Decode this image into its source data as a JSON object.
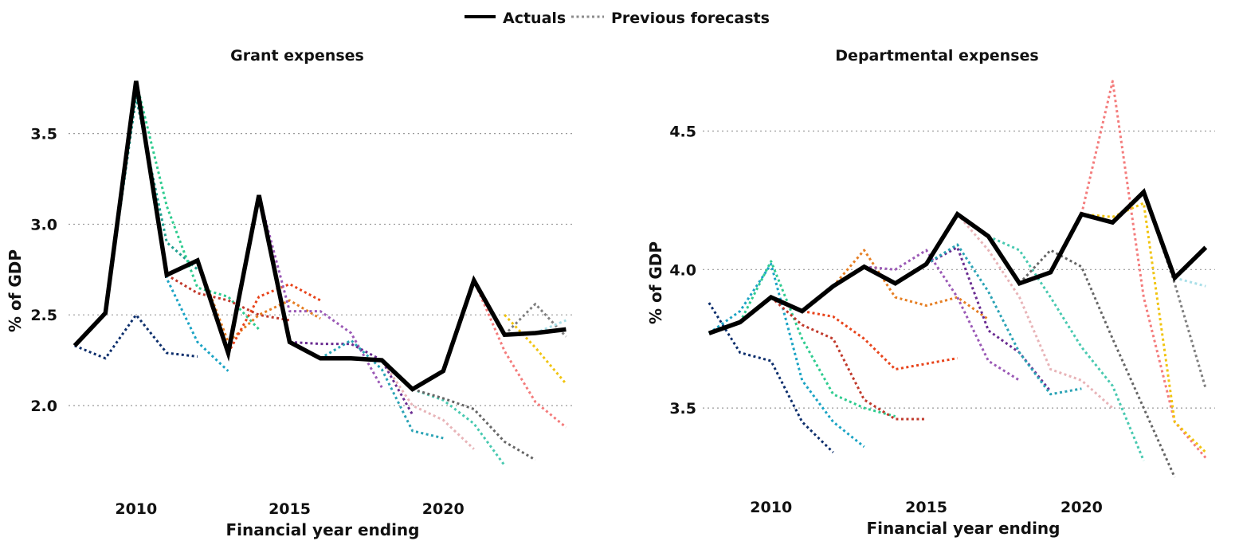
{
  "legend": {
    "actuals_label": "Actuals",
    "forecasts_label": "Previous forecasts",
    "actuals_color": "#000000",
    "forecasts_color": "#8c8c8c"
  },
  "chart_data": [
    {
      "type": "line",
      "title": "Grant expenses",
      "xlabel": "Financial year ending",
      "ylabel": "% of GDP",
      "xlim": [
        2007.8,
        2024.3
      ],
      "ylim": [
        1.6,
        3.85
      ],
      "x_ticks": [
        2010,
        2015,
        2020
      ],
      "y_ticks": [
        2.0,
        2.5,
        3.0,
        3.5
      ],
      "y_tick_labels": [
        "2.0",
        "2.5",
        "3.0",
        "3.5"
      ],
      "grid": "horizontal dotted",
      "actuals": {
        "color": "#000000",
        "x": [
          2008,
          2009,
          2010,
          2011,
          2012,
          2013,
          2014,
          2015,
          2016,
          2017,
          2018,
          2019,
          2020,
          2021,
          2022,
          2023,
          2024
        ],
        "y": [
          2.33,
          2.51,
          3.79,
          2.72,
          2.8,
          2.29,
          3.16,
          2.35,
          2.26,
          2.26,
          2.25,
          2.09,
          2.19,
          2.69,
          2.39,
          2.4,
          2.42
        ]
      },
      "forecasts": [
        {
          "color": "#0b2d6b",
          "x": [
            2008,
            2009,
            2010,
            2011,
            2012
          ],
          "y": [
            2.33,
            2.26,
            2.5,
            2.29,
            2.27
          ]
        },
        {
          "color": "#1f9f8f",
          "x": [
            2009,
            2010,
            2011,
            2012
          ],
          "y": [
            2.51,
            3.7,
            2.9,
            2.75
          ]
        },
        {
          "color": "#1aa3c4",
          "x": [
            2010,
            2011,
            2012,
            2013
          ],
          "y": [
            3.79,
            2.7,
            2.35,
            2.19
          ]
        },
        {
          "color": "#2ecc8f",
          "x": [
            2010,
            2011,
            2012,
            2013,
            2014
          ],
          "y": [
            3.79,
            3.1,
            2.65,
            2.6,
            2.42
          ]
        },
        {
          "color": "#c0392b",
          "x": [
            2011,
            2012,
            2013,
            2014,
            2015
          ],
          "y": [
            2.72,
            2.62,
            2.58,
            2.5,
            2.47
          ]
        },
        {
          "color": "#e67e22",
          "x": [
            2012,
            2013,
            2014,
            2015,
            2016
          ],
          "y": [
            2.8,
            2.35,
            2.5,
            2.58,
            2.48
          ]
        },
        {
          "color": "#e8431a",
          "x": [
            2013,
            2014,
            2015,
            2016
          ],
          "y": [
            2.29,
            2.6,
            2.67,
            2.58
          ]
        },
        {
          "color": "#9b59b6",
          "x": [
            2014,
            2015,
            2016,
            2017,
            2018
          ],
          "y": [
            3.16,
            2.52,
            2.52,
            2.4,
            2.1
          ]
        },
        {
          "color": "#6a2c91",
          "x": [
            2015,
            2016,
            2017,
            2018,
            2019
          ],
          "y": [
            2.35,
            2.34,
            2.34,
            2.25,
            1.95
          ]
        },
        {
          "color": "#2aa3b5",
          "x": [
            2016,
            2017,
            2018,
            2019,
            2020
          ],
          "y": [
            2.26,
            2.36,
            2.2,
            1.86,
            1.82
          ]
        },
        {
          "color": "#e8b4b8",
          "x": [
            2018,
            2019,
            2020,
            2021
          ],
          "y": [
            2.25,
            2.0,
            1.92,
            1.76
          ]
        },
        {
          "color": "#48c9b0",
          "x": [
            2019,
            2020,
            2021,
            2022
          ],
          "y": [
            2.09,
            2.03,
            1.9,
            1.67
          ]
        },
        {
          "color": "#666666",
          "x": [
            2019,
            2020,
            2021,
            2022,
            2023
          ],
          "y": [
            2.09,
            2.04,
            1.98,
            1.8,
            1.7
          ]
        },
        {
          "color": "#f47c7c",
          "x": [
            2021,
            2022,
            2023,
            2024
          ],
          "y": [
            2.69,
            2.3,
            2.02,
            1.88
          ]
        },
        {
          "color": "#f1c40f",
          "x": [
            2022,
            2023,
            2024
          ],
          "y": [
            2.5,
            2.32,
            2.12
          ]
        },
        {
          "color": "#7f7f7f",
          "x": [
            2022,
            2023,
            2024
          ],
          "y": [
            2.39,
            2.56,
            2.38
          ]
        },
        {
          "color": "#a9dfe8",
          "x": [
            2023,
            2024
          ],
          "y": [
            2.4,
            2.47
          ]
        }
      ]
    },
    {
      "type": "line",
      "title": "Departmental expenses",
      "xlabel": "Financial year ending",
      "ylabel": "% of GDP",
      "xlim": [
        2007.8,
        2024.3
      ],
      "ylim": [
        3.23,
        4.72
      ],
      "x_ticks": [
        2010,
        2015,
        2020
      ],
      "y_ticks": [
        3.5,
        4.0,
        4.5
      ],
      "y_tick_labels": [
        "3.5",
        "4.0",
        "4.5"
      ],
      "grid": "horizontal dotted",
      "actuals": {
        "color": "#000000",
        "x": [
          2008,
          2009,
          2010,
          2011,
          2012,
          2013,
          2014,
          2015,
          2016,
          2017,
          2018,
          2019,
          2020,
          2021,
          2022,
          2023,
          2024
        ],
        "y": [
          3.77,
          3.81,
          3.9,
          3.85,
          3.94,
          4.01,
          3.95,
          4.02,
          4.2,
          4.12,
          3.95,
          3.99,
          4.2,
          4.17,
          4.28,
          3.97,
          4.08
        ]
      },
      "forecasts": [
        {
          "color": "#0b2d6b",
          "x": [
            2008,
            2009,
            2010,
            2011,
            2012
          ],
          "y": [
            3.88,
            3.7,
            3.67,
            3.45,
            3.34
          ]
        },
        {
          "color": "#1aa3c4",
          "x": [
            2008,
            2009,
            2010,
            2011,
            2012,
            2013
          ],
          "y": [
            3.77,
            3.85,
            4.02,
            3.6,
            3.45,
            3.36
          ]
        },
        {
          "color": "#2ecc8f",
          "x": [
            2009,
            2010,
            2011,
            2012,
            2013,
            2014
          ],
          "y": [
            3.81,
            4.03,
            3.75,
            3.55,
            3.5,
            3.47
          ]
        },
        {
          "color": "#c0392b",
          "x": [
            2010,
            2011,
            2012,
            2013,
            2014,
            2015
          ],
          "y": [
            3.9,
            3.8,
            3.75,
            3.53,
            3.46,
            3.46
          ]
        },
        {
          "color": "#e8431a",
          "x": [
            2011,
            2012,
            2013,
            2014,
            2015,
            2016
          ],
          "y": [
            3.85,
            3.83,
            3.75,
            3.64,
            3.66,
            3.68
          ]
        },
        {
          "color": "#e67e22",
          "x": [
            2012,
            2013,
            2014,
            2015,
            2016,
            2017
          ],
          "y": [
            3.94,
            4.07,
            3.9,
            3.87,
            3.9,
            3.82
          ]
        },
        {
          "color": "#9b59b6",
          "x": [
            2013,
            2014,
            2015,
            2016,
            2017,
            2018
          ],
          "y": [
            4.01,
            4.0,
            4.07,
            3.9,
            3.67,
            3.6
          ]
        },
        {
          "color": "#6a2c91",
          "x": [
            2015,
            2016,
            2017,
            2018,
            2019
          ],
          "y": [
            4.02,
            4.08,
            3.78,
            3.7,
            3.56
          ]
        },
        {
          "color": "#2aa3b5",
          "x": [
            2015,
            2016,
            2017,
            2018,
            2019,
            2020
          ],
          "y": [
            4.02,
            4.09,
            3.92,
            3.7,
            3.55,
            3.57
          ]
        },
        {
          "color": "#e8b4b8",
          "x": [
            2016,
            2017,
            2018,
            2019,
            2020,
            2021
          ],
          "y": [
            4.2,
            4.07,
            3.9,
            3.64,
            3.6,
            3.5
          ]
        },
        {
          "color": "#48c9b0",
          "x": [
            2017,
            2018,
            2019,
            2020,
            2021,
            2022
          ],
          "y": [
            4.12,
            4.07,
            3.9,
            3.72,
            3.58,
            3.31
          ]
        },
        {
          "color": "#666666",
          "x": [
            2018,
            2019,
            2020,
            2021,
            2022,
            2023
          ],
          "y": [
            3.95,
            4.07,
            4.01,
            3.75,
            3.5,
            3.25
          ]
        },
        {
          "color": "#f47c7c",
          "x": [
            2020,
            2021,
            2022,
            2023,
            2024
          ],
          "y": [
            4.2,
            4.68,
            3.9,
            3.45,
            3.32
          ]
        },
        {
          "color": "#f1c40f",
          "x": [
            2020,
            2021,
            2022,
            2023,
            2024
          ],
          "y": [
            4.2,
            4.19,
            4.24,
            3.45,
            3.34
          ]
        },
        {
          "color": "#7f7f7f",
          "x": [
            2022,
            2023,
            2024
          ],
          "y": [
            4.28,
            3.95,
            3.57
          ]
        },
        {
          "color": "#a9dfe8",
          "x": [
            2023,
            2024
          ],
          "y": [
            3.97,
            3.94
          ]
        }
      ]
    }
  ]
}
